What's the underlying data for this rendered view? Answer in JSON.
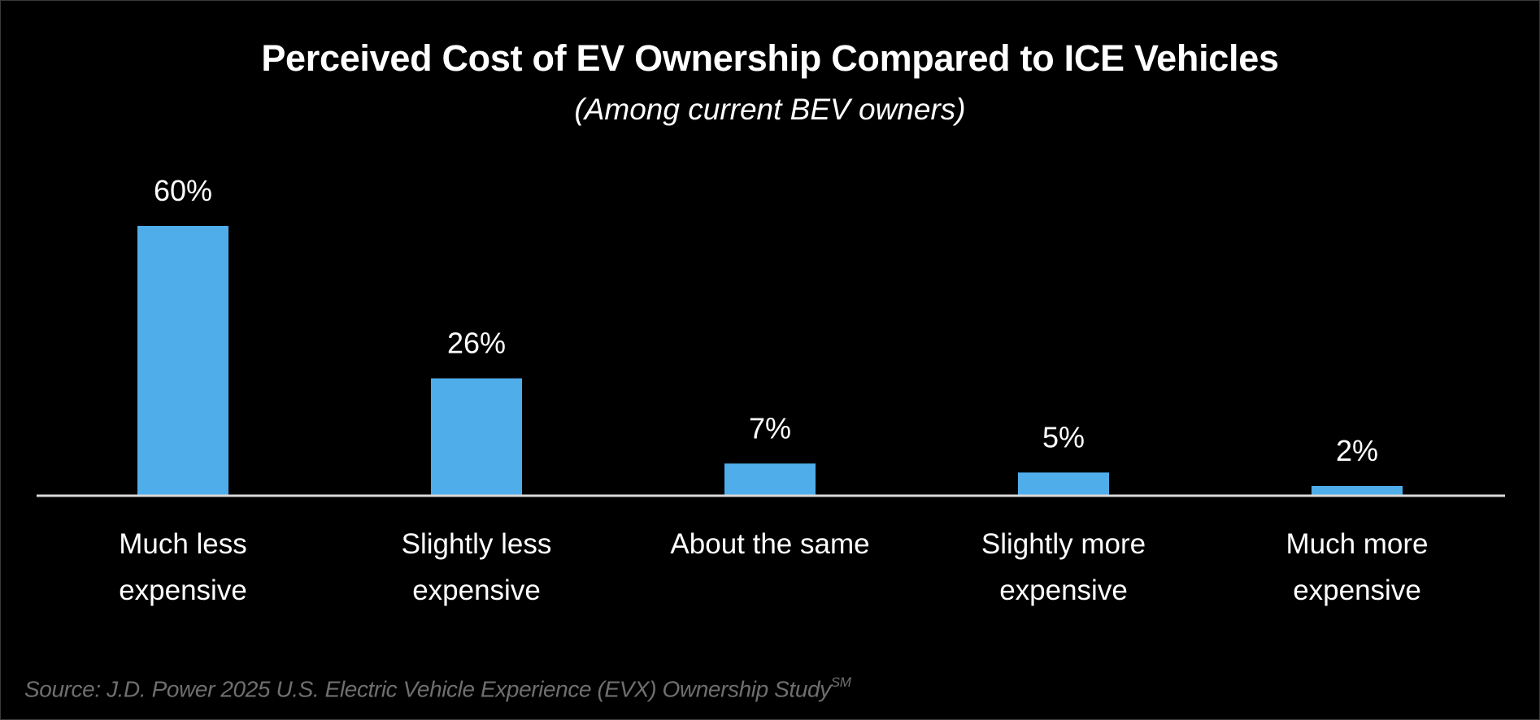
{
  "chart_data": {
    "type": "bar",
    "title": "Perceived Cost of EV Ownership Compared to ICE Vehicles",
    "subtitle": "(Among current BEV owners)",
    "categories": [
      [
        "Much less",
        "expensive"
      ],
      [
        "Slightly less",
        "expensive"
      ],
      [
        "About the same"
      ],
      [
        "Slightly more",
        "expensive"
      ],
      [
        "Much more",
        "expensive"
      ]
    ],
    "values": [
      60,
      26,
      7,
      5,
      2
    ],
    "value_labels": [
      "60%",
      "26%",
      "7%",
      "5%",
      "2%"
    ],
    "xlabel": "",
    "ylabel": "",
    "ylim": [
      0,
      60
    ],
    "grid": false,
    "legend": "none",
    "bar_color": "#4FADEA",
    "axis_color": "#D9D9D9",
    "source": {
      "text": "Source: J.D. Power 2025 U.S. Electric Vehicle Experience (EVX) Ownership Study",
      "superscript": "SM"
    }
  }
}
